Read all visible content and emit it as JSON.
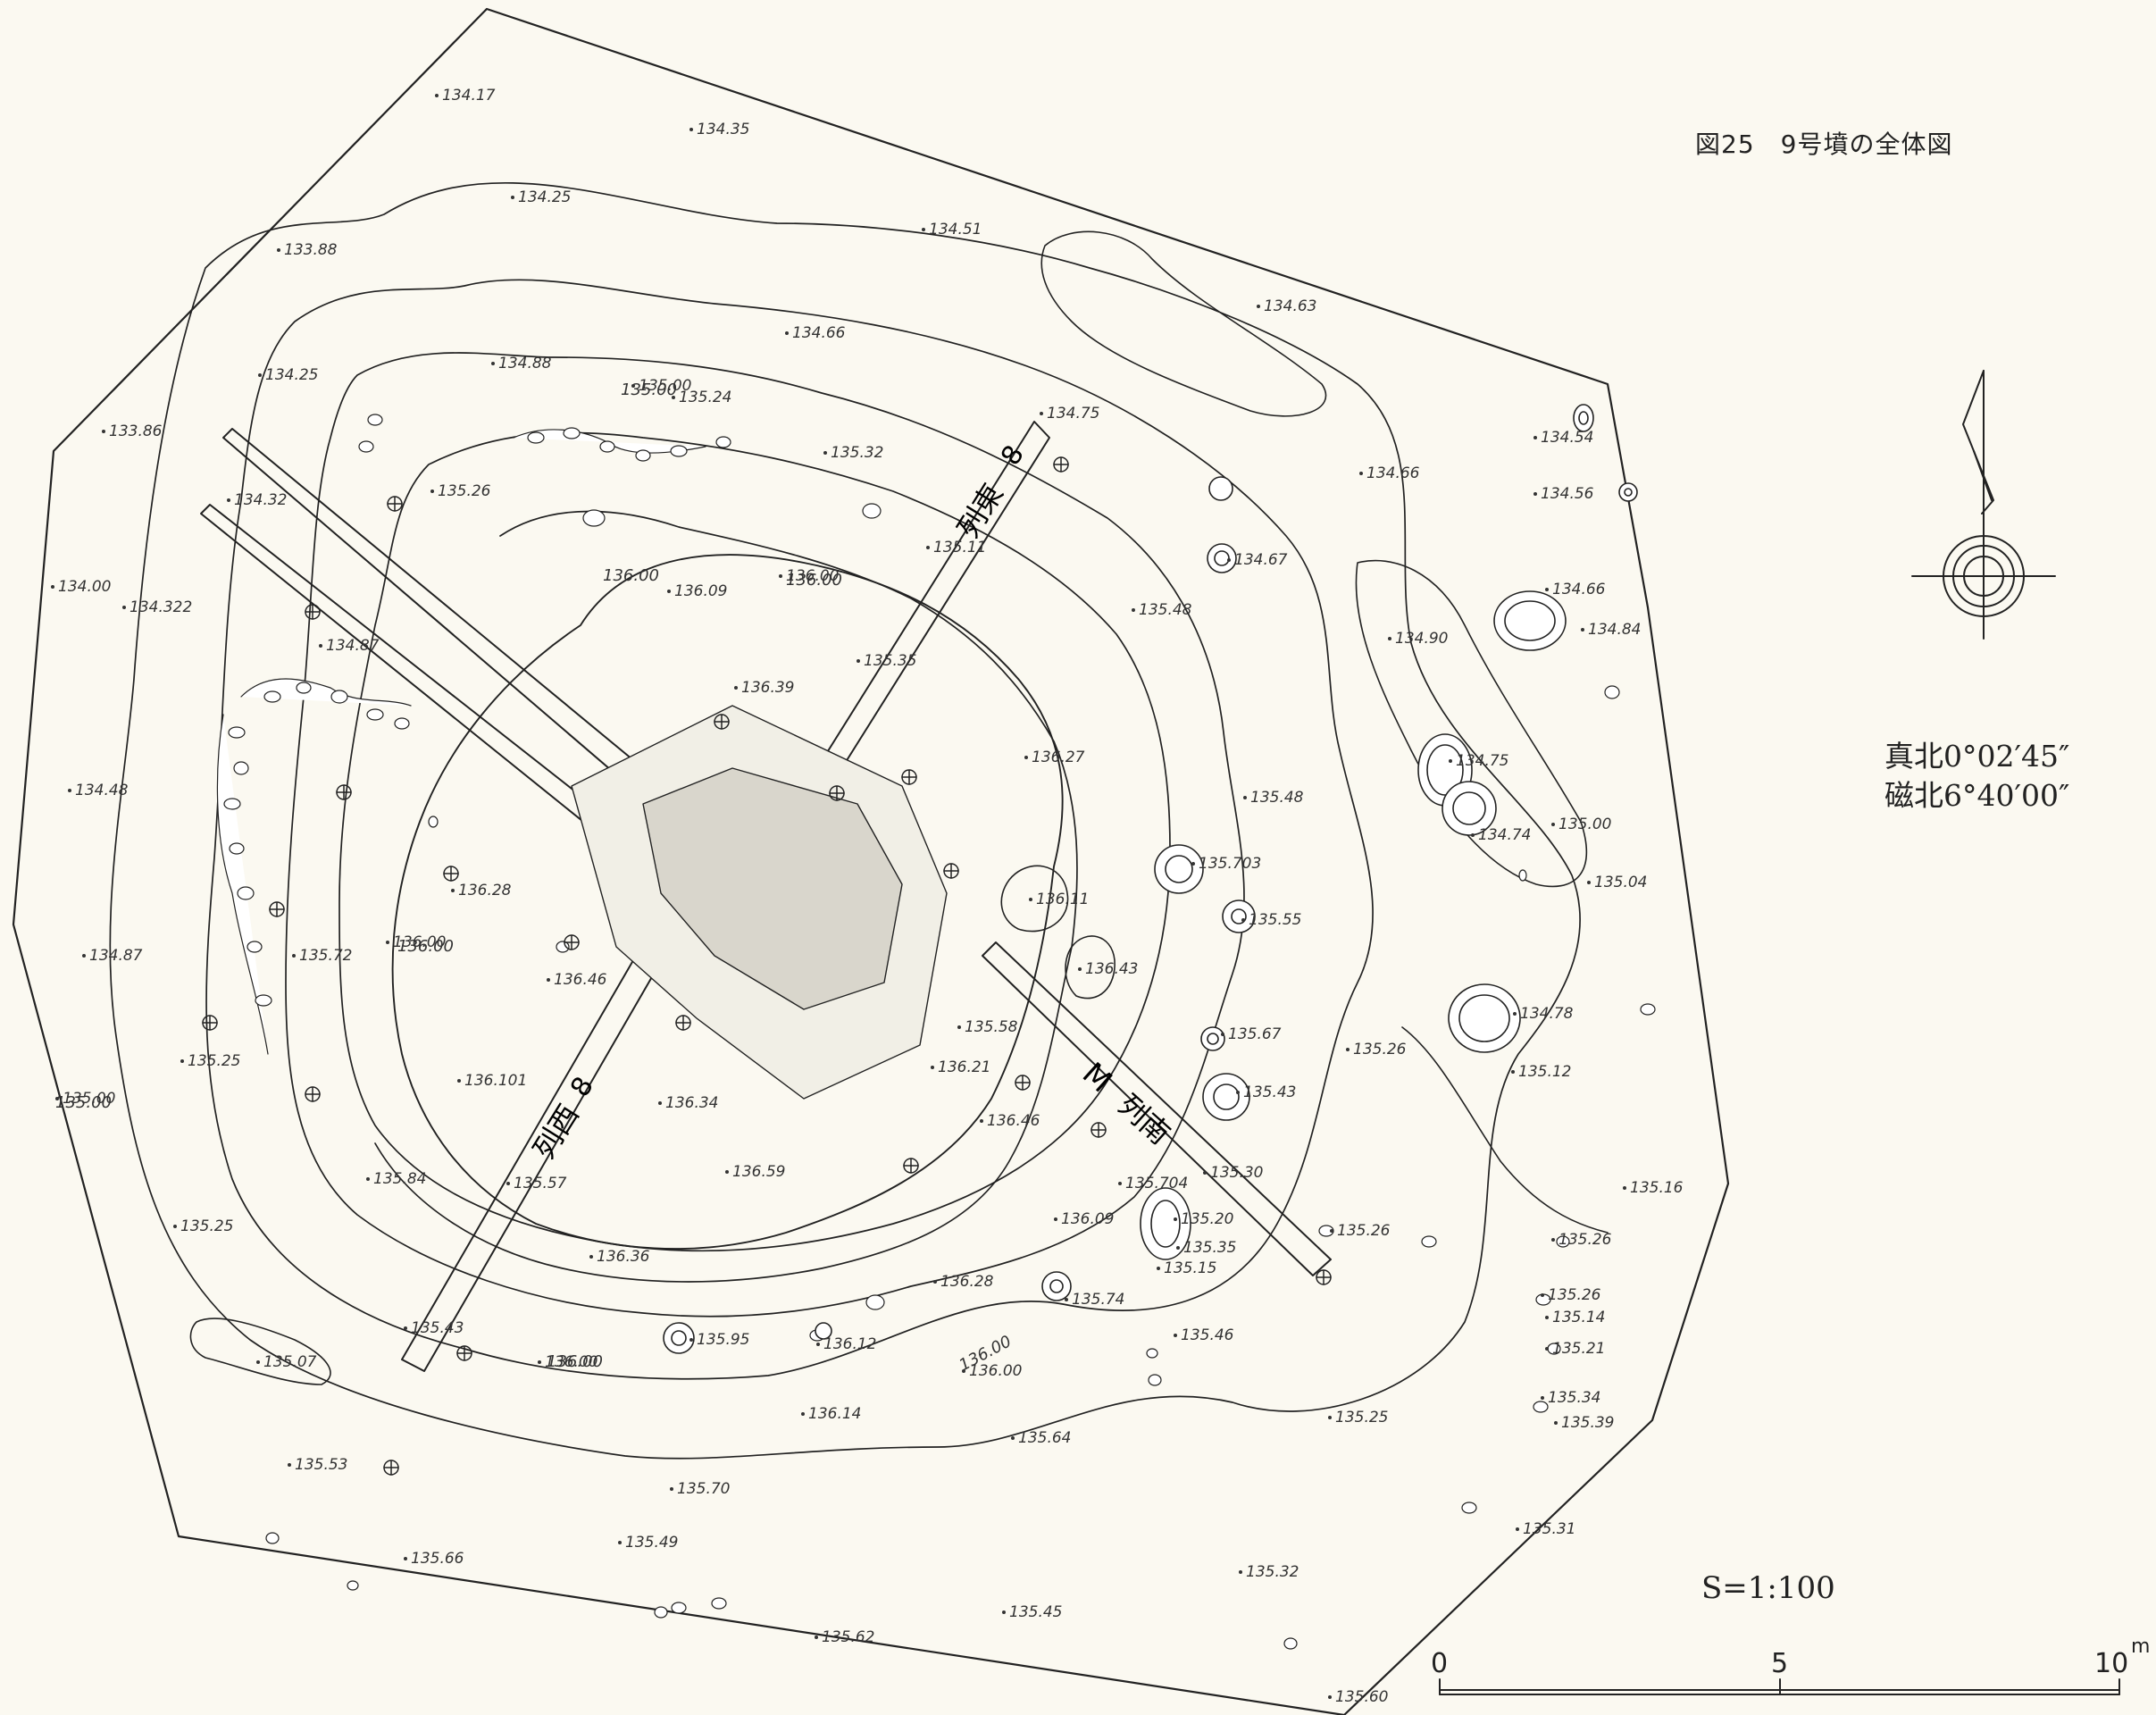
{
  "title": "図25　9号墳の全体図",
  "north": {
    "true_north": "真北0°02′45″",
    "magnetic_north": "磁北6°40′00″"
  },
  "scale": {
    "ratio": "S=1:100",
    "ticks": [
      "0",
      "5",
      "10"
    ],
    "unit": "m"
  },
  "trench_labels": {
    "east": {
      "num": "8",
      "name": "列東"
    },
    "west": {
      "num": "8",
      "name": "列西"
    },
    "south": {
      "num": "M",
      "name": "列南"
    }
  },
  "contour_labels": [
    "135.00",
    "136.00",
    "136.00",
    "136.00",
    "136.00",
    "136.00",
    "135.00"
  ],
  "spot_heights": [
    "134.17",
    "134.35",
    "134.25",
    "133.88",
    "134.51",
    "134.63",
    "134.66",
    "134.25",
    "134.88",
    "135.00",
    "135.24",
    "133.86",
    "134.75",
    "134.54",
    "134.56",
    "135.32",
    "134.32",
    "135.26",
    "134.66",
    "135.11",
    "134.67",
    "134.00",
    "134.322",
    "136.09",
    "136.00",
    "135.48",
    "134.66",
    "134.84",
    "134.90",
    "134.87",
    "136.39",
    "135.35",
    "136.27",
    "134.75",
    "134.48",
    "135.48",
    "134.74",
    "135.00",
    "135.04",
    "136.28",
    "135.703",
    "136.11",
    "135.55",
    "134.87",
    "135.72",
    "136.00",
    "136.43",
    "136.46",
    "134.78",
    "135.58",
    "135.67",
    "135.26",
    "135.12",
    "135.25",
    "136.21",
    "135.43",
    "135.00",
    "136.101",
    "136.34",
    "136.46",
    "135.84",
    "135.57",
    "136.59",
    "135.704",
    "135.30",
    "135.16",
    "135.25",
    "136.09",
    "135.20",
    "135.35",
    "135.26",
    "135.26",
    "135.15",
    "136.36",
    "136.28",
    "135.26",
    "135.14",
    "135.43",
    "135.95",
    "136.12",
    "136.00",
    "135.74",
    "135.46",
    "135.21",
    "135.07",
    "136.00",
    "135.34",
    "135.39",
    "136.14",
    "135.64",
    "135.25",
    "135.53",
    "135.70",
    "135.49",
    "135.31",
    "135.66",
    "135.32",
    "135.45",
    "135.62",
    "135.60"
  ]
}
